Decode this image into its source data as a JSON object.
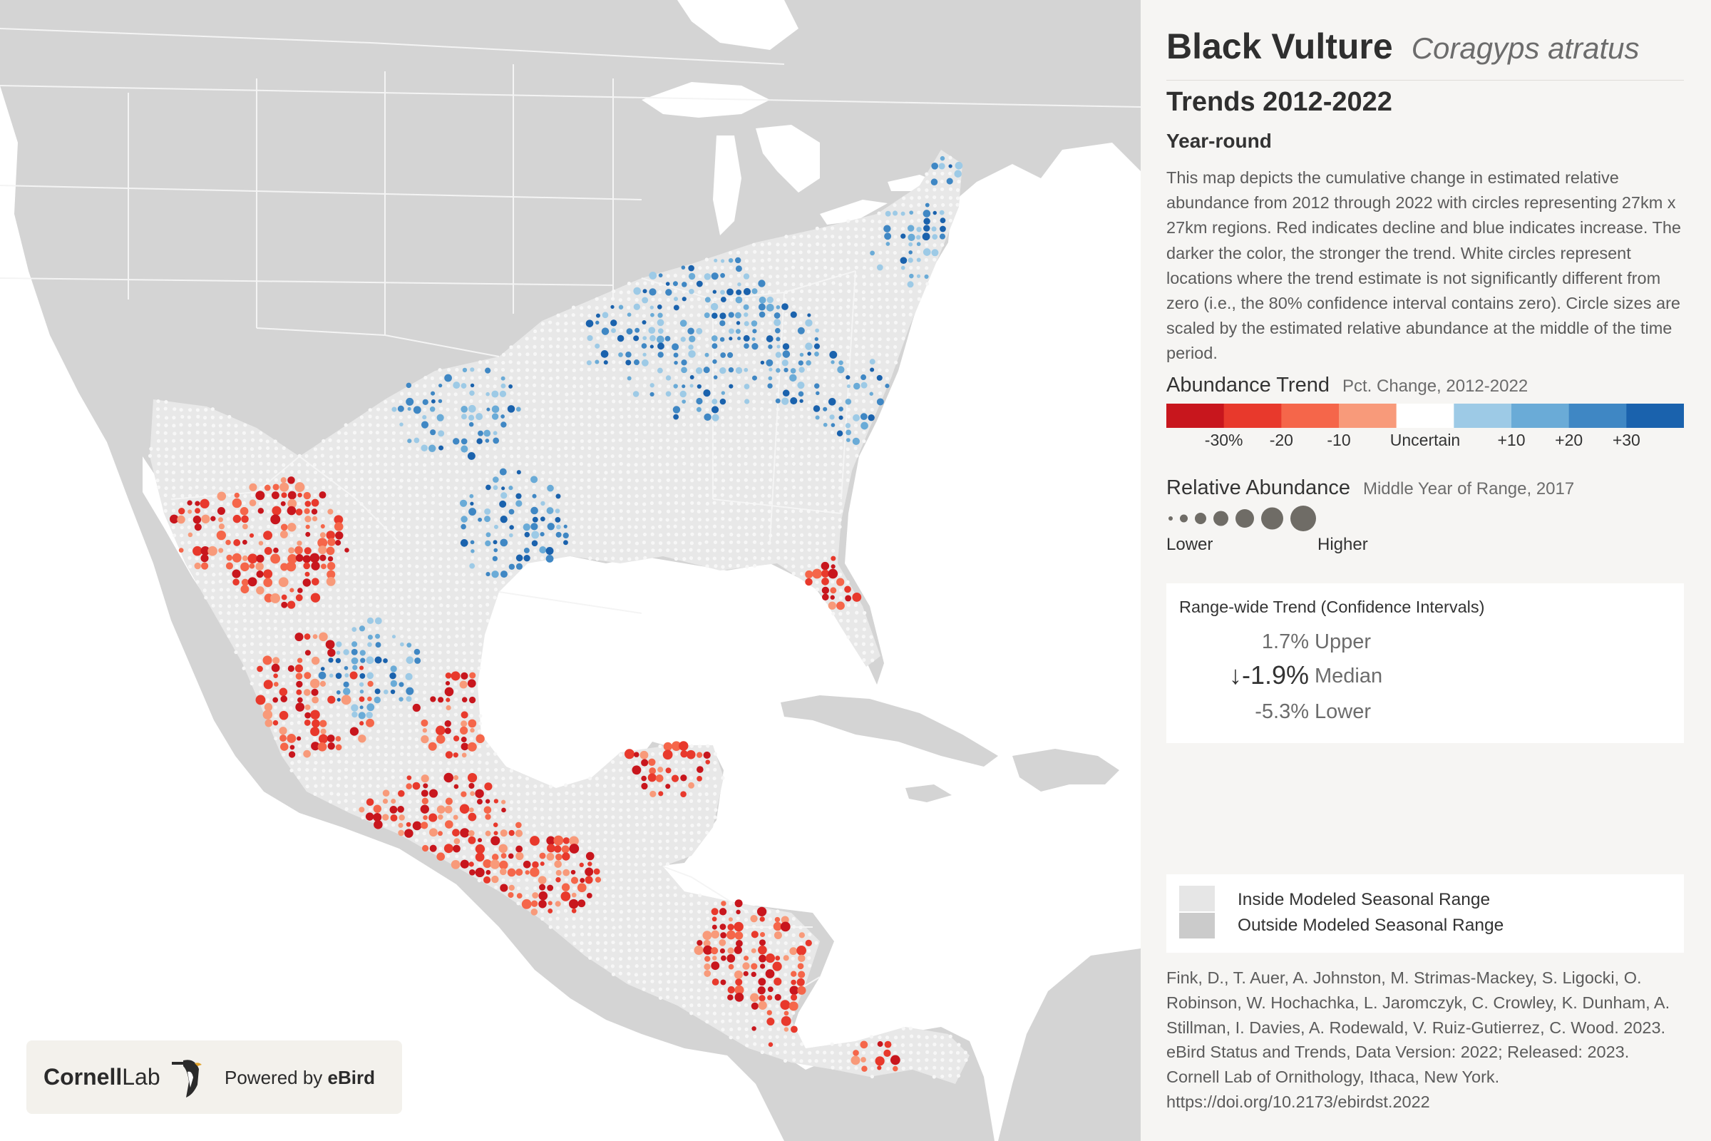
{
  "header": {
    "species_name": "Black Vulture",
    "scientific_name": "Coragyps atratus",
    "trend_title": "Trends 2012-2022",
    "season": "Year-round",
    "description": "This map depicts the cumulative change in estimated relative abundance from 2012 through 2022 with circles representing 27km x 27km regions. Red indicates decline and blue indicates increase. The darker the color, the stronger the trend. White circles represent locations where the trend estimate is not significantly different from zero (i.e., the 80% confidence interval contains zero). Circle sizes are scaled by the estimated relative abundance at the middle of the time period."
  },
  "legend_trend": {
    "title": "Abundance Trend",
    "subtitle": "Pct. Change, 2012-2022",
    "bins": [
      {
        "color": "#c8161d"
      },
      {
        "color": "#e8392c"
      },
      {
        "color": "#f5664a"
      },
      {
        "color": "#f89a7a"
      },
      {
        "color": "#ffffff"
      },
      {
        "color": "#9dcae6"
      },
      {
        "color": "#6aabd7"
      },
      {
        "color": "#3f87c4"
      },
      {
        "color": "#1a62ad"
      }
    ],
    "labels": [
      "-30%",
      "-20",
      "-10",
      "Uncertain",
      "+10",
      "+20",
      "+30"
    ]
  },
  "legend_abundance": {
    "title": "Relative Abundance",
    "subtitle": "Middle Year of Range, 2017",
    "low_label": "Lower",
    "high_label": "Higher",
    "dot_color": "#6f6c66"
  },
  "range_wide": {
    "title": "Range-wide Trend (Confidence Intervals)",
    "upper_value": "1.7%",
    "upper_label": "Upper",
    "median_value": "↓-1.9%",
    "median_label": "Median",
    "lower_value": "-5.3%",
    "lower_label": "Lower"
  },
  "range_legend": {
    "inside_label": "Inside Modeled Seasonal Range",
    "inside_color": "#e6e6e6",
    "outside_label": "Outside Modeled Seasonal Range",
    "outside_color": "#cbcbcb"
  },
  "citation": "Fink, D., T. Auer, A. Johnston, M. Strimas-Mackey, S. Ligocki, O. Robinson, W. Hochachka, L. Jaromczyk, C. Crowley, K. Dunham, A. Stillman, I. Davies, A. Rodewald, V. Ruiz-Gutierrez, C. Wood. 2023. eBird Status and Trends, Data Version: 2022; Released: 2023. Cornell Lab of Ornithology, Ithaca, New York. https://doi.org/10.2173/ebirdst.2022",
  "logo": {
    "org_bold": "Cornell",
    "org_rest": "Lab",
    "powered_prefix": "Powered by ",
    "powered_brand": "eBird"
  },
  "map": {
    "land_color": "#d4d4d4",
    "range_color": "#e8e8e8",
    "water_color": "#ffffff",
    "border_color": "#f4f4f4"
  }
}
